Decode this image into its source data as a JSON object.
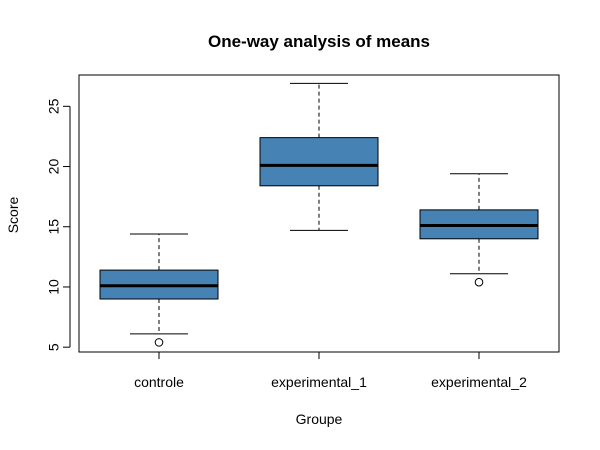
{
  "chart_data": {
    "type": "boxplot",
    "title": "One-way analysis of means",
    "xlabel": "Groupe",
    "ylabel": "Score",
    "ylim": [
      4.6,
      27.6
    ],
    "yticks": [
      5,
      10,
      15,
      20,
      25
    ],
    "box_color": "#4682b4",
    "categories": [
      "controle",
      "experimental_1",
      "experimental_2"
    ],
    "boxes": [
      {
        "name": "controle",
        "whisker_low": 6.1,
        "q1": 9.0,
        "median": 10.1,
        "q3": 11.4,
        "whisker_high": 14.4,
        "outliers": [
          5.4
        ]
      },
      {
        "name": "experimental_1",
        "whisker_low": 14.7,
        "q1": 18.4,
        "median": 20.1,
        "q3": 22.4,
        "whisker_high": 26.9,
        "outliers": []
      },
      {
        "name": "experimental_2",
        "whisker_low": 11.1,
        "q1": 14.0,
        "median": 15.1,
        "q3": 16.4,
        "whisker_high": 19.4,
        "outliers": [
          10.4
        ]
      }
    ]
  }
}
